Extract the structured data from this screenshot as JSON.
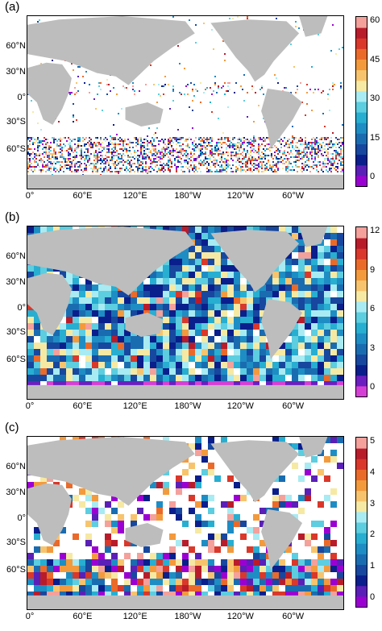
{
  "panels": [
    {
      "label": "(a)",
      "colorbar_ticks": [
        "60",
        "45",
        "30",
        "15",
        "0"
      ],
      "colors": [
        "#9b00d3",
        "#5a1fb7",
        "#0a1e8c",
        "#17479e",
        "#1a6cb0",
        "#1e8dc4",
        "#27aed1",
        "#5dcde0",
        "#a8ebf2",
        "#f6e9a3",
        "#f7c46d",
        "#f39a3d",
        "#ea6a2a",
        "#d9382a",
        "#b81c2b",
        "#f4a09b"
      ]
    },
    {
      "label": "(b)",
      "colorbar_ticks": [
        "12",
        "9",
        "6",
        "3",
        "0"
      ],
      "colors": [
        "#d63fd6",
        "#6b1fc0",
        "#0a1e8c",
        "#17479e",
        "#1a6cb0",
        "#1e8dc4",
        "#27aed1",
        "#5dcde0",
        "#a8ebf2",
        "#f6e9a3",
        "#f7c46d",
        "#f39a3d",
        "#ea6a2a",
        "#d9382a",
        "#b81c2b",
        "#f4a09b"
      ]
    },
    {
      "label": "(c)",
      "colorbar_ticks": [
        "5",
        "4",
        "3",
        "2",
        "1",
        "0"
      ],
      "colors": [
        "#9b00d3",
        "#5a1fb7",
        "#0a1e8c",
        "#17479e",
        "#1a6cb0",
        "#1e8dc4",
        "#27aed1",
        "#5dcde0",
        "#a8ebf2",
        "#f6e9a3",
        "#f7c46d",
        "#f39a3d",
        "#ea6a2a",
        "#d9382a",
        "#b81c2b",
        "#f4a09b"
      ]
    }
  ],
  "lat_labels": [
    "60°N",
    "30°N",
    "0°",
    "30°S",
    "60°S"
  ],
  "lon_labels": [
    "0°",
    "60°E",
    "120°E",
    "180°W",
    "120°W",
    "60°W"
  ],
  "land_color": "#bdbdbd"
}
